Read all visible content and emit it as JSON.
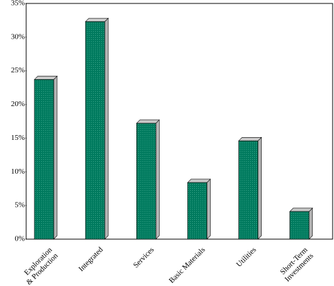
{
  "chart_data": {
    "type": "bar",
    "categories": [
      "Exploration\n& Production",
      "Integrated",
      "Services",
      "Basic Materials",
      "Utilities",
      "Short-Term\nInvestments"
    ],
    "values": [
      23.7,
      32.3,
      17.2,
      8.4,
      14.6,
      4.1
    ],
    "color": "#007a5e",
    "ylim": [
      0,
      35
    ],
    "yticks": [
      {
        "value": 0,
        "label": "0%"
      },
      {
        "value": 5,
        "label": "5%"
      },
      {
        "value": 10,
        "label": "10%"
      },
      {
        "value": 15,
        "label": "15%"
      },
      {
        "value": 20,
        "label": "20%"
      },
      {
        "value": 25,
        "label": "25%"
      },
      {
        "value": 30,
        "label": "30%"
      },
      {
        "value": 35,
        "label": "35%"
      }
    ]
  }
}
